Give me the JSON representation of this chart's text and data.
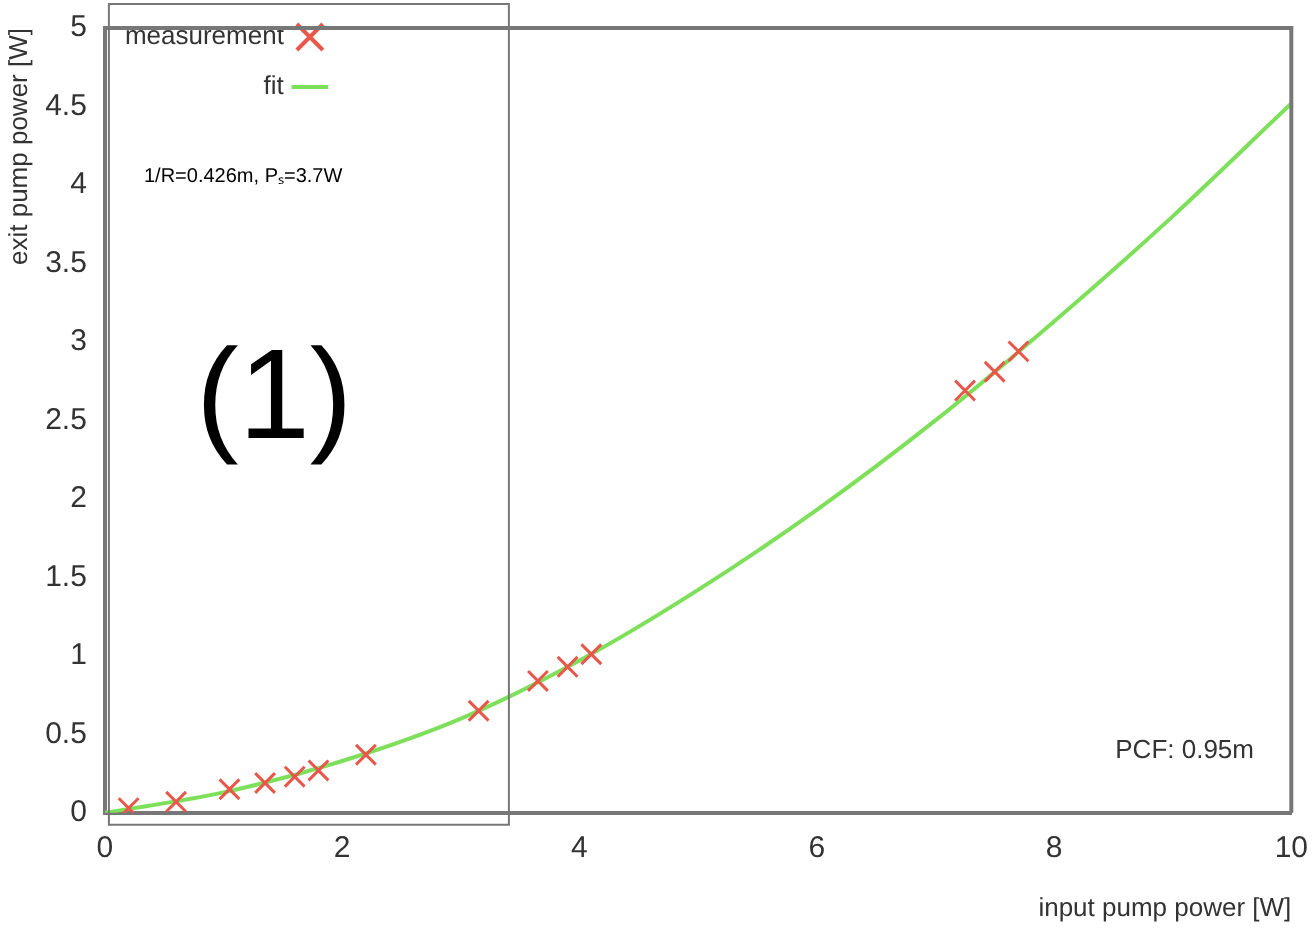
{
  "chart_data": {
    "type": "scatter",
    "xlabel": "input pump power [W]",
    "ylabel": "exit pump power [W]",
    "xlim": [
      0,
      10
    ],
    "xticks": [
      0,
      2,
      4,
      6,
      8,
      10
    ],
    "ylim": [
      0,
      5
    ],
    "yticks": [
      0,
      0.5,
      1,
      1.5,
      2,
      2.5,
      3,
      3.5,
      4,
      4.5,
      5
    ],
    "grid": false,
    "legend": "top left",
    "annotations": [
      "1/R=0.426m, Pₛ=3.7W",
      "(1)",
      "PCF: 0.95m"
    ],
    "series": [
      {
        "name": "measurement",
        "marker": "cross",
        "color": "#e8574a",
        "x": [
          0.2,
          0.6,
          1.05,
          1.35,
          1.6,
          1.8,
          2.2,
          3.15,
          3.65,
          3.9,
          4.1,
          7.25,
          7.5,
          7.7
        ],
        "values": [
          0.03,
          0.07,
          0.15,
          0.19,
          0.23,
          0.27,
          0.37,
          0.65,
          0.84,
          0.93,
          1.01,
          2.69,
          2.81,
          2.94
        ]
      },
      {
        "name": "fit",
        "type": "line",
        "marker": "none",
        "line_style": "solid",
        "color": "#7ee05a",
        "x": [
          0,
          1,
          2,
          3,
          4,
          5,
          6,
          7,
          8,
          9,
          10
        ],
        "values": [
          0,
          0.13,
          0.33,
          0.6,
          0.97,
          1.42,
          1.93,
          2.5,
          3.13,
          3.8,
          4.52
        ]
      }
    ]
  }
}
